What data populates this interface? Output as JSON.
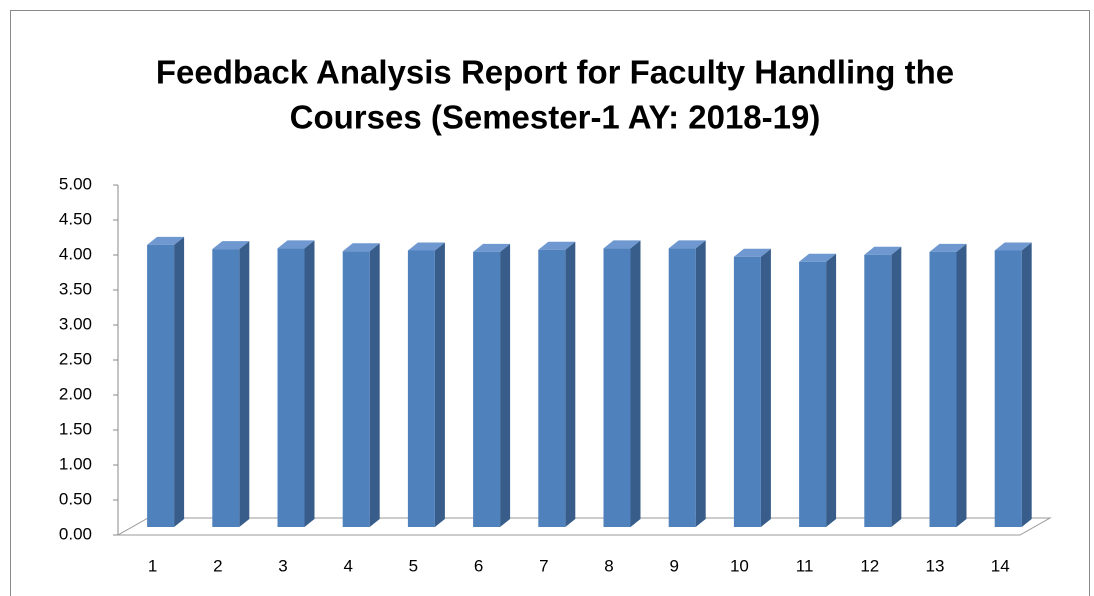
{
  "chart_data": {
    "type": "bar3d",
    "title": "Feedback Analysis Report for Faculty Handling the",
    "subtitle": "Courses (Semester-1 AY: 2018-19)",
    "categories": [
      "1",
      "2",
      "3",
      "4",
      "5",
      "6",
      "7",
      "8",
      "9",
      "10",
      "11",
      "12",
      "13",
      "14"
    ],
    "values": [
      4.03,
      3.97,
      3.98,
      3.94,
      3.95,
      3.93,
      3.96,
      3.98,
      3.98,
      3.86,
      3.79,
      3.89,
      3.93,
      3.95
    ],
    "color": "#4f81bd",
    "ylim": [
      0,
      5
    ],
    "yticks": [
      {
        "value": 0,
        "label": "0.00"
      },
      {
        "value": 0.5,
        "label": "0.50"
      },
      {
        "value": 1,
        "label": "1.00"
      },
      {
        "value": 1.5,
        "label": "1.50"
      },
      {
        "value": 2,
        "label": "2.00"
      },
      {
        "value": 2.5,
        "label": "2.50"
      },
      {
        "value": 3,
        "label": "3.00"
      },
      {
        "value": 3.5,
        "label": "3.50"
      },
      {
        "value": 4,
        "label": "4.00"
      },
      {
        "value": 4.5,
        "label": "4.50"
      },
      {
        "value": 5,
        "label": "5.00"
      }
    ]
  }
}
